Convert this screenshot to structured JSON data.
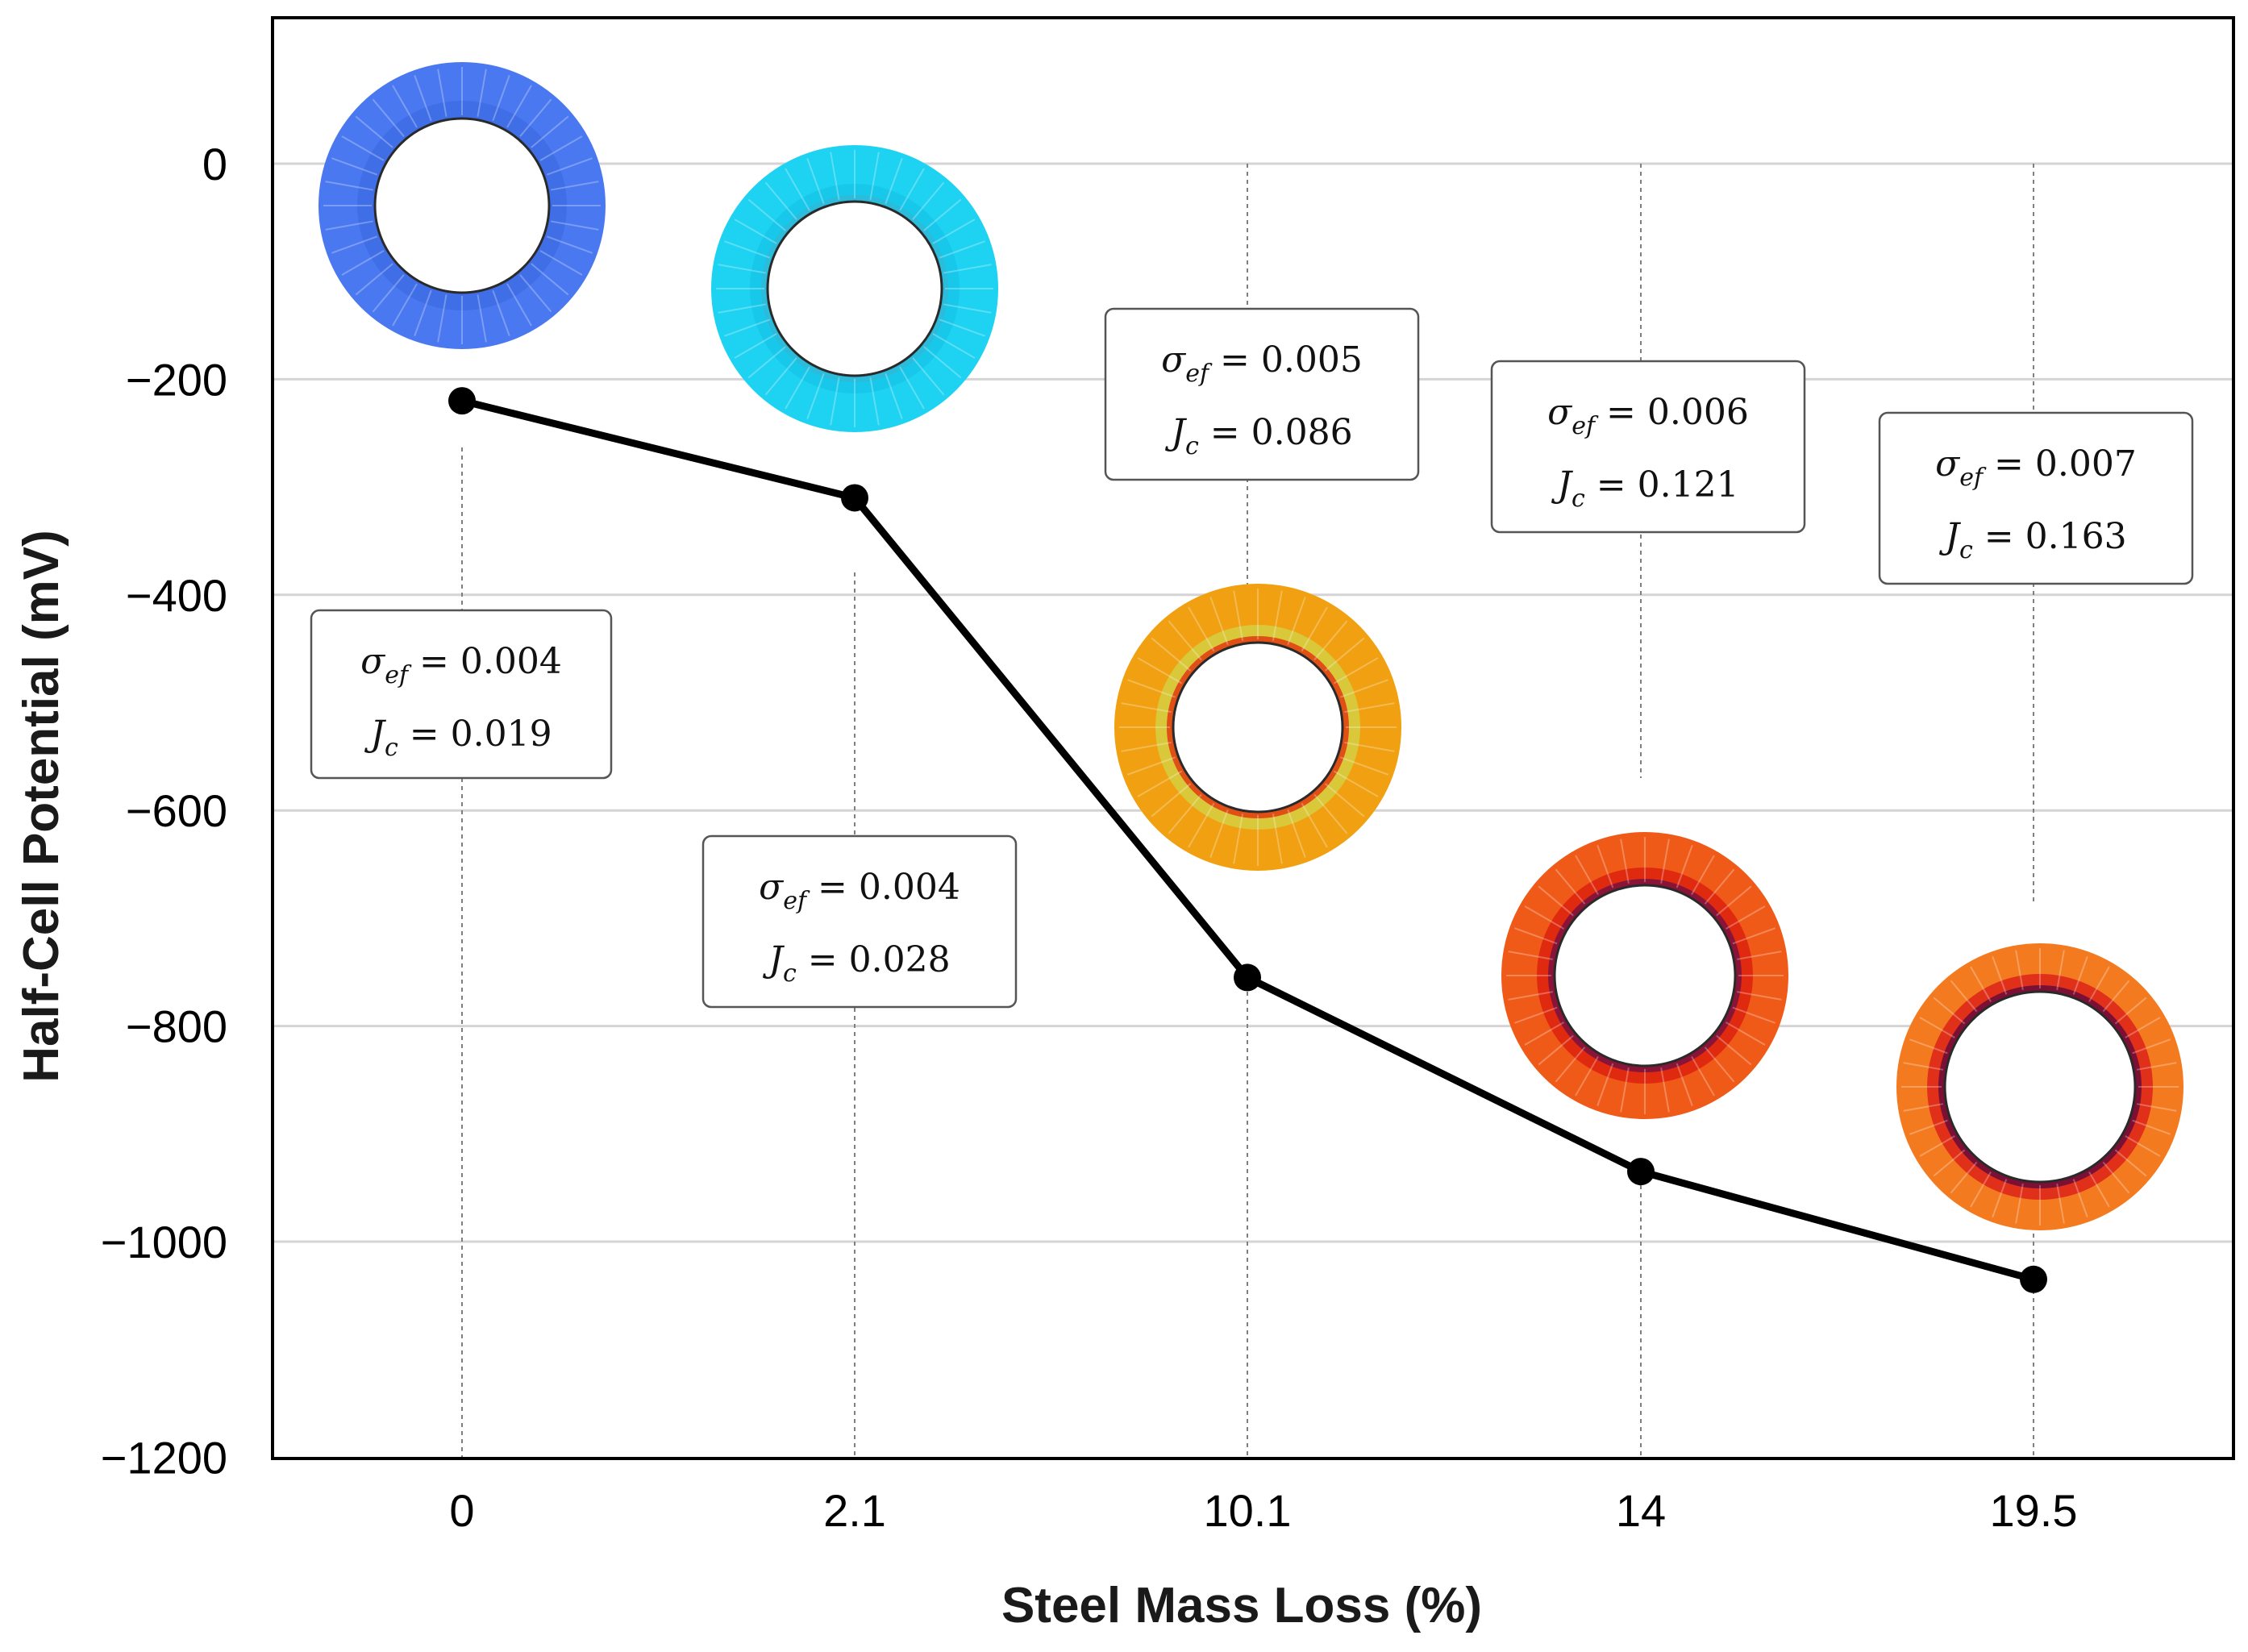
{
  "chart_data": {
    "type": "line",
    "xlabel": "Steel Mass Loss (%)",
    "ylabel": "Half-Cell Potential (mV)",
    "categories": [
      "0",
      "2.1",
      "10.1",
      "14",
      "19.5"
    ],
    "values": [
      -220,
      -310,
      -755,
      -935,
      -1035
    ],
    "ylim": [
      -1200,
      130
    ],
    "yticks": [
      0,
      -200,
      -400,
      -600,
      -800,
      -1000,
      -1200
    ],
    "ytick_labels": [
      "0",
      "−200",
      "−400",
      "−600",
      "−800",
      "−1000",
      "−1200"
    ],
    "grid": true,
    "line_color": "#000000",
    "annotations": [
      {
        "category": "0",
        "sigma_ef": "0.004",
        "J_c": "0.019"
      },
      {
        "category": "2.1",
        "sigma_ef": "0.004",
        "J_c": "0.028"
      },
      {
        "category": "10.1",
        "sigma_ef": "0.005",
        "J_c": "0.086"
      },
      {
        "category": "14",
        "sigma_ef": "0.006",
        "J_c": "0.121"
      },
      {
        "category": "19.5",
        "sigma_ef": "0.007",
        "J_c": "0.163"
      }
    ],
    "ring_images": [
      {
        "category": "0",
        "outer_color": "#4a78f0",
        "inner_color": "#3f6ee6",
        "damage_color": "#3f6ee6"
      },
      {
        "category": "2.1",
        "outer_color": "#1ed2f2",
        "inner_color": "#18c8ea",
        "damage_color": "#2fb8d8"
      },
      {
        "category": "10.1",
        "outer_color": "#f0a010",
        "inner_color": "#d9c83a",
        "damage_color": "#e03a10"
      },
      {
        "category": "14",
        "outer_color": "#f05a18",
        "inner_color": "#e02a10",
        "damage_color": "#7a1040"
      },
      {
        "category": "19.5",
        "outer_color": "#f47a20",
        "inner_color": "#e0301a",
        "damage_color": "#6a0a3a"
      }
    ]
  }
}
